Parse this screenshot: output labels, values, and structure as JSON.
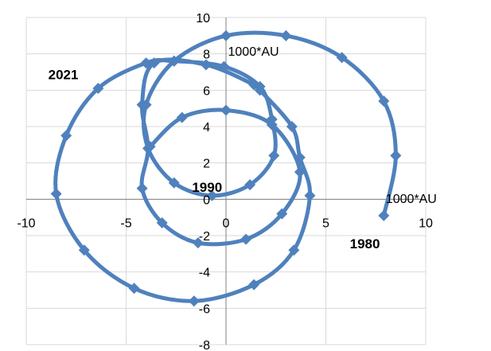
{
  "chart_data": {
    "type": "scatter",
    "title": "",
    "xlabel": "",
    "ylabel": "",
    "xlim": [
      -10,
      10
    ],
    "ylim": [
      -8,
      10
    ],
    "x_ticks": [
      -10,
      -5,
      0,
      5,
      10
    ],
    "y_ticks": [
      -8,
      -6,
      -4,
      -2,
      0,
      2,
      4,
      6,
      8,
      10
    ],
    "x_tick_labels": [
      "-10",
      "-5",
      "0",
      "5",
      "10"
    ],
    "y_tick_labels": [
      "-8",
      "-6",
      "-4",
      "-2",
      "0",
      "2",
      "4",
      "6",
      "8",
      "10"
    ],
    "grid": true,
    "legend": "none",
    "line_color": "#4f81bd",
    "series": [
      {
        "points": [
          {
            "x": 7.9,
            "y": -0.9
          },
          {
            "x": 8.5,
            "y": 2.4
          },
          {
            "x": 7.9,
            "y": 5.4
          },
          {
            "x": 5.8,
            "y": 7.8
          },
          {
            "x": 3.0,
            "y": 9.0
          },
          {
            "x": 0.0,
            "y": 9.0
          },
          {
            "x": -2.6,
            "y": 7.6
          },
          {
            "x": -4.0,
            "y": 5.2
          },
          {
            "x": -3.9,
            "y": 2.8
          },
          {
            "x": -2.6,
            "y": 0.9
          },
          {
            "x": -0.7,
            "y": 0.2
          },
          {
            "x": 1.2,
            "y": 0.8
          },
          {
            "x": 2.4,
            "y": 2.4
          },
          {
            "x": 2.3,
            "y": 4.4
          },
          {
            "x": 1.7,
            "y": 6.2
          },
          {
            "x": -0.1,
            "y": 7.3
          },
          {
            "x": -2.6,
            "y": 7.6
          },
          {
            "x": -4.0,
            "y": 7.5
          },
          {
            "x": -6.4,
            "y": 6.1
          },
          {
            "x": -8.0,
            "y": 3.5
          },
          {
            "x": -8.5,
            "y": 0.3
          },
          {
            "x": -7.1,
            "y": -2.8
          },
          {
            "x": -4.6,
            "y": -4.9
          },
          {
            "x": -1.6,
            "y": -5.6
          },
          {
            "x": 1.4,
            "y": -4.7
          },
          {
            "x": 3.4,
            "y": -2.8
          },
          {
            "x": 4.2,
            "y": 0.2
          },
          {
            "x": 3.7,
            "y": 2.3
          },
          {
            "x": 3.3,
            "y": 4.0
          },
          {
            "x": 1.7,
            "y": 6.0
          },
          {
            "x": 1.4,
            "y": 6.3
          },
          {
            "x": -1.0,
            "y": 7.4
          },
          {
            "x": -3.6,
            "y": 7.5
          },
          {
            "x": -4.2,
            "y": 5.2
          },
          {
            "x": -3.9,
            "y": 2.8
          },
          {
            "x": -4.2,
            "y": 0.6
          },
          {
            "x": -3.2,
            "y": -1.3
          },
          {
            "x": -1.4,
            "y": -2.4
          },
          {
            "x": 1.0,
            "y": -2.2
          },
          {
            "x": 2.8,
            "y": -0.8
          },
          {
            "x": 3.7,
            "y": 1.5
          },
          {
            "x": 2.3,
            "y": 4.1
          },
          {
            "x": 0.0,
            "y": 4.9
          },
          {
            "x": -2.2,
            "y": 4.5
          },
          {
            "x": -3.8,
            "y": 2.9
          }
        ]
      }
    ],
    "annotations": [
      {
        "text": "1000*AU",
        "x": 0.1,
        "y": 7.9,
        "bold": false
      },
      {
        "text": "1000*AU",
        "x": 8.0,
        "y": -0.2,
        "bold": false
      },
      {
        "text": "2021",
        "x": -8.9,
        "y": 6.6,
        "bold": true
      },
      {
        "text": "1990",
        "x": -1.7,
        "y": 0.4,
        "bold": true
      },
      {
        "text": "1980",
        "x": 6.2,
        "y": -2.7,
        "bold": true
      }
    ]
  }
}
